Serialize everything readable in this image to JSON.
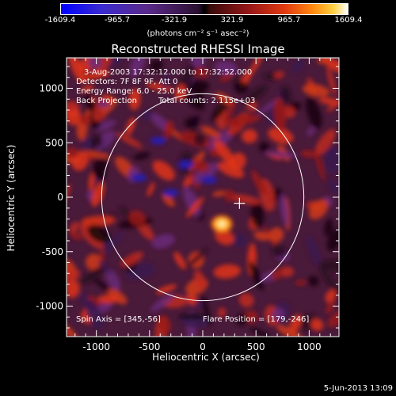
{
  "colorbar": {
    "ticks": [
      "-1609.4",
      "-965.7",
      "-321.9",
      "321.9",
      "965.7",
      "1609.4"
    ],
    "unit": "(photons cm⁻² s⁻¹ asec⁻²)"
  },
  "title": "Reconstructed RHESSI Image",
  "annotations": {
    "time": "3-Aug-2003 17:32:12.000 to 17:32:52.000",
    "detectors": "Detectors: 7F 8F 9F, Att 0",
    "energy": "Energy Range: 6.0 - 25.0 keV",
    "method": "Back Projection",
    "counts": "Total counts: 2.115e+03",
    "spin_axis": "Spin Axis = [345,-56]",
    "flare_position": "Flare Position = [179,-246]"
  },
  "footer": "5-Jun-2013 13:09",
  "chart_data": {
    "type": "heatmap",
    "title": "Reconstructed RHESSI Image",
    "xlabel": "Heliocentric X (arcsec)",
    "ylabel": "Heliocentric Y (arcsec)",
    "xlim": [
      -1280,
      1280
    ],
    "ylim": [
      -1280,
      1280
    ],
    "xticks": [
      -1000,
      -500,
      0,
      500,
      1000
    ],
    "yticks": [
      -1000,
      -500,
      0,
      500,
      1000
    ],
    "colorscale_range": [
      -1609.4,
      1609.4
    ],
    "solar_limb_radius": 950,
    "cross_marker": [
      345,
      -56
    ],
    "peak_position": [
      179,
      -246
    ]
  }
}
